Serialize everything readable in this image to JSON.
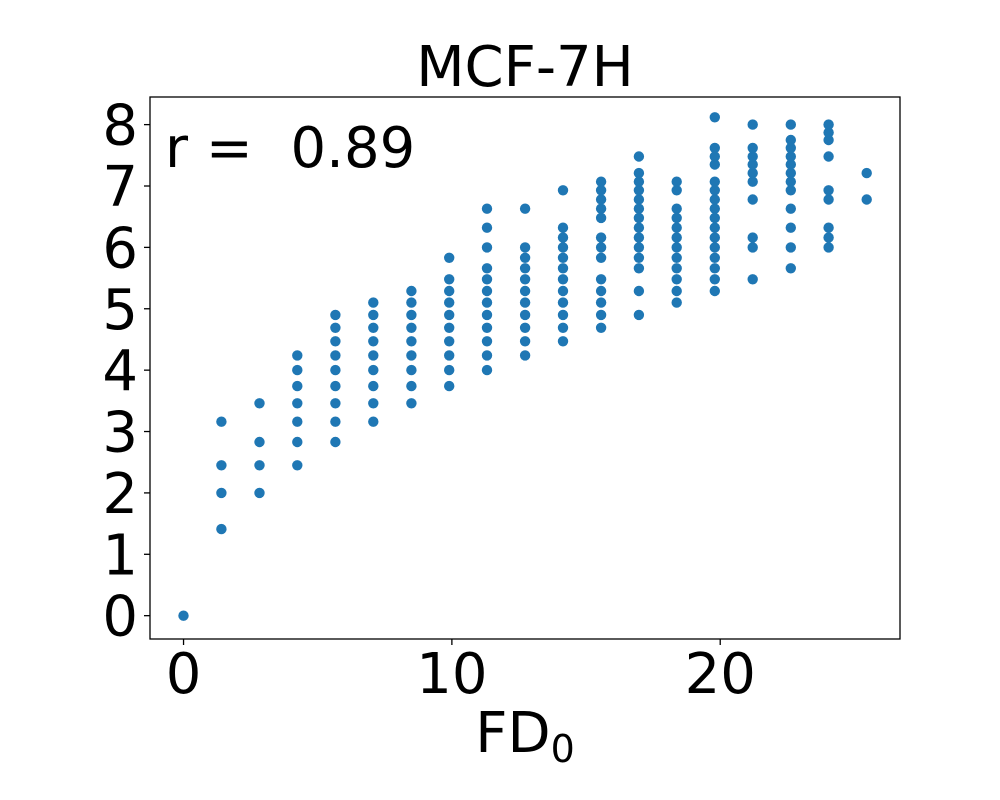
{
  "chart_data": {
    "type": "scatter",
    "title": "MCF-7H",
    "xlabel_main": "FD",
    "xlabel_sub": "0",
    "ylabel": "",
    "annotation_label": "r = ",
    "annotation_value": "0.89",
    "xlim": [
      -1.25,
      26.7
    ],
    "ylim": [
      -0.38,
      8.45
    ],
    "x_ticks": [
      0,
      10,
      20
    ],
    "y_ticks": [
      0,
      1,
      2,
      3,
      4,
      5,
      6,
      7,
      8
    ],
    "grid": false,
    "legend": "none",
    "point_color": "#1f77b4",
    "columns": [
      {
        "x": 0,
        "y": [
          0
        ]
      },
      {
        "x": 1.41,
        "y": [
          1.41,
          2.0,
          2.45,
          3.16
        ]
      },
      {
        "x": 2.83,
        "y": [
          2.0,
          2.45,
          2.83,
          3.46
        ]
      },
      {
        "x": 4.24,
        "y": [
          2.45,
          2.83,
          3.16,
          3.46,
          3.74,
          4.0,
          4.24
        ]
      },
      {
        "x": 5.66,
        "y": [
          2.83,
          3.16,
          3.46,
          3.74,
          4.0,
          4.24,
          4.47,
          4.69,
          4.9
        ]
      },
      {
        "x": 7.07,
        "y": [
          3.16,
          3.46,
          3.74,
          4.0,
          4.24,
          4.47,
          4.69,
          4.9,
          5.1
        ]
      },
      {
        "x": 8.49,
        "y": [
          3.46,
          3.74,
          4.0,
          4.24,
          4.47,
          4.69,
          4.9,
          5.1,
          5.29
        ]
      },
      {
        "x": 9.9,
        "y": [
          3.74,
          4.0,
          4.24,
          4.47,
          4.69,
          4.9,
          5.1,
          5.29,
          5.48,
          5.83
        ]
      },
      {
        "x": 11.31,
        "y": [
          4.0,
          4.24,
          4.47,
          4.69,
          4.9,
          5.1,
          5.29,
          5.48,
          5.66,
          6.0,
          6.32,
          6.63
        ]
      },
      {
        "x": 12.73,
        "y": [
          4.24,
          4.47,
          4.69,
          4.9,
          5.1,
          5.29,
          5.48,
          5.66,
          5.83,
          6.0,
          6.63
        ]
      },
      {
        "x": 14.14,
        "y": [
          4.47,
          4.69,
          4.9,
          5.1,
          5.29,
          5.48,
          5.66,
          5.83,
          6.0,
          6.16,
          6.32,
          6.93
        ]
      },
      {
        "x": 15.56,
        "y": [
          4.69,
          4.9,
          5.1,
          5.29,
          5.48,
          5.83,
          6.0,
          6.16,
          6.48,
          6.63,
          6.78,
          6.93,
          7.07
        ]
      },
      {
        "x": 16.97,
        "y": [
          4.9,
          5.29,
          5.66,
          5.83,
          6.0,
          6.16,
          6.32,
          6.48,
          6.63,
          6.78,
          6.93,
          7.07,
          7.21,
          7.48
        ]
      },
      {
        "x": 18.38,
        "y": [
          5.1,
          5.29,
          5.48,
          5.66,
          5.83,
          6.0,
          6.16,
          6.32,
          6.48,
          6.63,
          6.93,
          7.07
        ]
      },
      {
        "x": 19.8,
        "y": [
          5.29,
          5.48,
          5.66,
          5.83,
          6.0,
          6.16,
          6.32,
          6.48,
          6.63,
          6.78,
          6.93,
          7.07,
          7.35,
          7.48,
          7.62,
          8.12
        ]
      },
      {
        "x": 21.21,
        "y": [
          5.48,
          6.0,
          6.16,
          6.78,
          7.07,
          7.21,
          7.35,
          7.48,
          7.62,
          8.0
        ]
      },
      {
        "x": 22.63,
        "y": [
          5.66,
          6.0,
          6.32,
          6.63,
          6.93,
          7.07,
          7.21,
          7.35,
          7.48,
          7.62,
          7.75,
          8.0
        ]
      },
      {
        "x": 24.04,
        "y": [
          6.0,
          6.16,
          6.32,
          6.78,
          6.93,
          7.48,
          7.75,
          7.87,
          8.0
        ]
      },
      {
        "x": 25.46,
        "y": [
          6.78,
          7.21
        ]
      }
    ]
  }
}
